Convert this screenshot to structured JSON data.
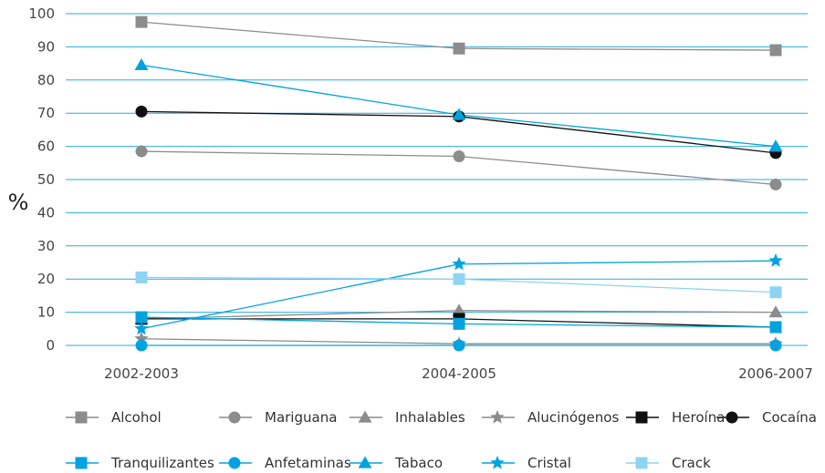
{
  "chart_data": {
    "type": "line",
    "title": "",
    "xlabel": "",
    "ylabel": "%",
    "categories": [
      "2002-2003",
      "2004-2005",
      "2006-2007"
    ],
    "ylim": [
      0,
      100
    ],
    "yticks": [
      0,
      10,
      20,
      30,
      40,
      50,
      60,
      70,
      80,
      90,
      100
    ],
    "grid": true,
    "legend_position": "bottom",
    "series": [
      {
        "name": "Alcohol",
        "values": [
          97.5,
          89.5,
          89
        ],
        "color": "#8c8c8c",
        "marker": "square"
      },
      {
        "name": "Mariguana",
        "values": [
          58.5,
          57,
          48.5
        ],
        "color": "#8c8c8c",
        "marker": "circle"
      },
      {
        "name": "Inhalables",
        "values": [
          8,
          10.5,
          10
        ],
        "color": "#8c8c8c",
        "marker": "triangle"
      },
      {
        "name": "Alucinógenos",
        "values": [
          2,
          0.5,
          0.5
        ],
        "color": "#8c8c8c",
        "marker": "star"
      },
      {
        "name": "Heroína",
        "values": [
          8,
          8,
          5.5
        ],
        "color": "#111111",
        "marker": "square"
      },
      {
        "name": "Cocaína",
        "values": [
          70.5,
          69,
          58
        ],
        "color": "#111111",
        "marker": "circle"
      },
      {
        "name": "Tranquilizantes",
        "values": [
          8.5,
          6.5,
          5.5
        ],
        "color": "#00a3e0",
        "marker": "square"
      },
      {
        "name": "Anfetaminas",
        "values": [
          0,
          0,
          0
        ],
        "color": "#00a3e0",
        "marker": "circle"
      },
      {
        "name": "Tabaco",
        "values": [
          84.5,
          69.5,
          60
        ],
        "color": "#00a3e0",
        "marker": "triangle"
      },
      {
        "name": "Cristal",
        "values": [
          5,
          24.5,
          25.5
        ],
        "color": "#00a3e0",
        "marker": "star"
      },
      {
        "name": "Crack",
        "values": [
          20.5,
          20,
          16
        ],
        "color": "#8fd3f2",
        "marker": "square"
      }
    ]
  }
}
